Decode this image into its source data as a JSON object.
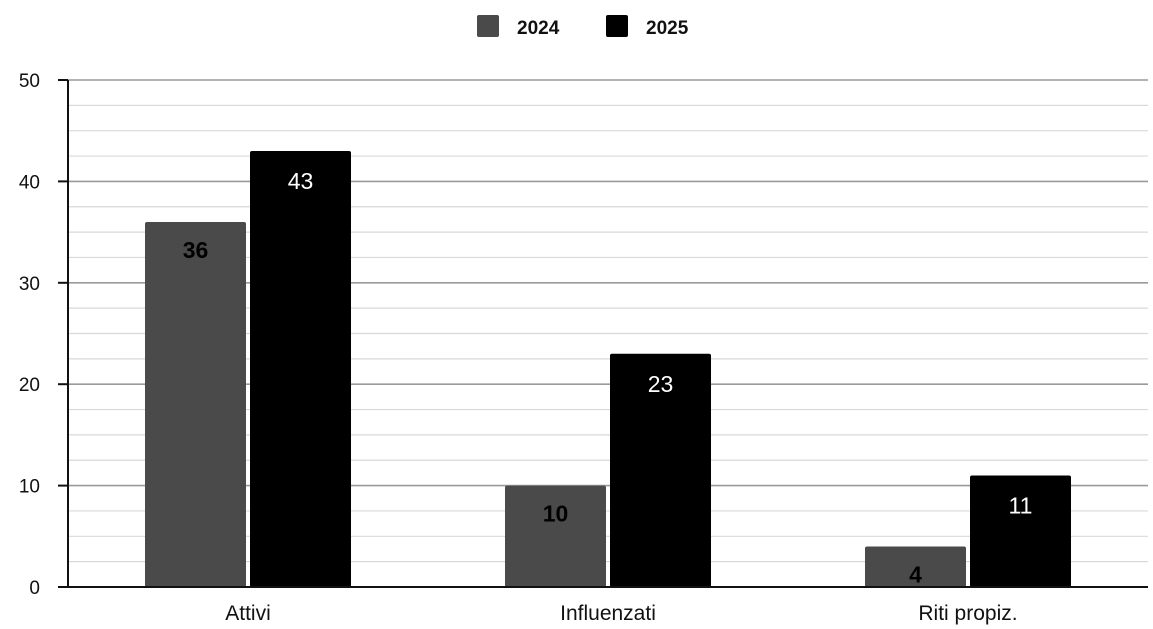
{
  "chart_data": {
    "type": "bar",
    "categories": [
      "Attivi",
      "Influenzati",
      "Riti propiz."
    ],
    "series": [
      {
        "name": "2024",
        "values": [
          36,
          10,
          4
        ],
        "color": "#4a4a4a"
      },
      {
        "name": "2025",
        "values": [
          43,
          23,
          11
        ],
        "color": "#000000"
      }
    ],
    "ylim": [
      0,
      50
    ],
    "yticks": [
      0,
      10,
      20,
      30,
      40,
      50
    ],
    "minor_grid_step": 2.5,
    "grid": true,
    "legend_position": "top-center",
    "data_labels": [
      [
        "36",
        "10",
        "4"
      ],
      [
        "43",
        "23",
        "11"
      ]
    ],
    "title": "",
    "xlabel": "",
    "ylabel": ""
  }
}
